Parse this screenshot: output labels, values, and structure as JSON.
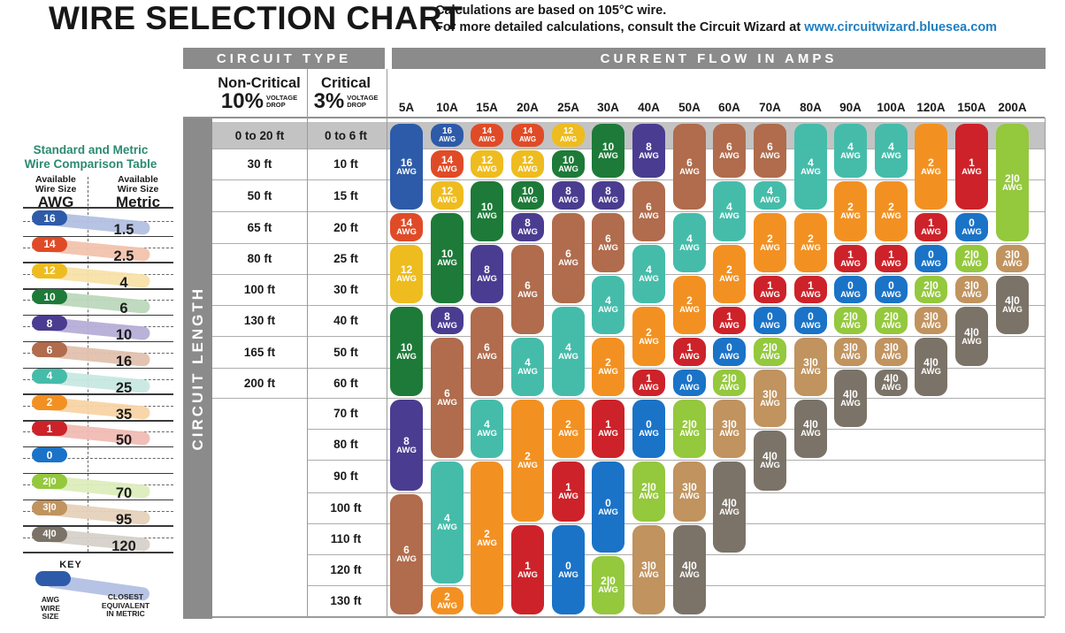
{
  "title": "WIRE SELECTION CHART",
  "subtitle": {
    "line1": "Calculations are based on 105°C wire.",
    "line2": "For more detailed calculations, consult the Circuit Wizard at",
    "link": "www.circuitwizard.bluesea.com"
  },
  "headers": {
    "circuit_type": "CIRCUIT TYPE",
    "current_flow": "CURRENT FLOW IN AMPS",
    "non_critical": "Non-Critical",
    "non_critical_pct": "10%",
    "critical": "Critical",
    "critical_pct": "3%",
    "voltage_label_1": "VOLTAGE",
    "voltage_label_2": "DROP",
    "circuit_length": "CIRCUIT LENGTH"
  },
  "chart_data": {
    "type": "table",
    "title": "Wire Selection Chart",
    "x_axis_label": "Current Flow in Amps",
    "y_axis_label": "Circuit Length",
    "amps": [
      "5A",
      "10A",
      "15A",
      "20A",
      "25A",
      "30A",
      "40A",
      "50A",
      "60A",
      "70A",
      "80A",
      "90A",
      "100A",
      "120A",
      "150A",
      "200A"
    ],
    "row_labels": [
      {
        "non_critical": "0 to 20 ft",
        "critical": "0 to 6 ft"
      },
      {
        "non_critical": "30 ft",
        "critical": "10 ft"
      },
      {
        "non_critical": "50 ft",
        "critical": "15 ft"
      },
      {
        "non_critical": "65 ft",
        "critical": "20 ft"
      },
      {
        "non_critical": "80 ft",
        "critical": "25 ft"
      },
      {
        "non_critical": "100 ft",
        "critical": "30 ft"
      },
      {
        "non_critical": "130 ft",
        "critical": "40 ft"
      },
      {
        "non_critical": "165 ft",
        "critical": "50 ft"
      },
      {
        "non_critical": "200 ft",
        "critical": "60 ft"
      },
      {
        "non_critical": "",
        "critical": "70 ft"
      },
      {
        "non_critical": "",
        "critical": "80 ft"
      },
      {
        "non_critical": "",
        "critical": "90 ft"
      },
      {
        "non_critical": "",
        "critical": "100 ft"
      },
      {
        "non_critical": "",
        "critical": "110 ft"
      },
      {
        "non_critical": "",
        "critical": "120 ft"
      },
      {
        "non_critical": "",
        "critical": "130 ft"
      }
    ],
    "unit_suffix": "AWG",
    "columns": [
      {
        "amp": "5A",
        "pills": [
          [
            "16",
            1,
            3
          ],
          [
            "14",
            4,
            4
          ],
          [
            "12",
            5,
            6
          ],
          [
            "10",
            7,
            9
          ],
          [
            "8",
            10,
            12
          ],
          [
            "6",
            13,
            16
          ]
        ]
      },
      {
        "amp": "10A",
        "pills": [
          [
            "16",
            1,
            1
          ],
          [
            "14",
            2,
            2
          ],
          [
            "12",
            3,
            3
          ],
          [
            "10",
            4,
            6
          ],
          [
            "8",
            7,
            7
          ],
          [
            "6",
            8,
            11
          ],
          [
            "4",
            12,
            15
          ],
          [
            "2",
            16,
            16
          ]
        ]
      },
      {
        "amp": "15A",
        "pills": [
          [
            "14",
            1,
            1
          ],
          [
            "12",
            2,
            2
          ],
          [
            "10",
            3,
            4
          ],
          [
            "8",
            5,
            6
          ],
          [
            "6",
            7,
            9
          ],
          [
            "4",
            10,
            11
          ],
          [
            "2",
            12,
            16
          ]
        ]
      },
      {
        "amp": "20A",
        "pills": [
          [
            "14",
            1,
            1
          ],
          [
            "12",
            2,
            2
          ],
          [
            "10",
            3,
            3
          ],
          [
            "8",
            4,
            4
          ],
          [
            "6",
            5,
            7
          ],
          [
            "4",
            8,
            9
          ],
          [
            "2",
            10,
            13
          ],
          [
            "1",
            14,
            16
          ]
        ]
      },
      {
        "amp": "25A",
        "pills": [
          [
            "12",
            1,
            1
          ],
          [
            "10",
            2,
            2
          ],
          [
            "8",
            3,
            3
          ],
          [
            "6",
            4,
            6
          ],
          [
            "4",
            7,
            9
          ],
          [
            "2",
            10,
            11
          ],
          [
            "1",
            12,
            13
          ],
          [
            "0",
            14,
            16
          ]
        ]
      },
      {
        "amp": "30A",
        "pills": [
          [
            "10",
            1,
            2
          ],
          [
            "8",
            3,
            3
          ],
          [
            "6",
            4,
            5
          ],
          [
            "4",
            6,
            7
          ],
          [
            "2",
            8,
            9
          ],
          [
            "1",
            10,
            11
          ],
          [
            "0",
            12,
            14
          ],
          [
            "2|0",
            15,
            16
          ]
        ]
      },
      {
        "amp": "40A",
        "pills": [
          [
            "8",
            1,
            2
          ],
          [
            "6",
            3,
            4
          ],
          [
            "4",
            5,
            6
          ],
          [
            "2",
            7,
            8
          ],
          [
            "1",
            9,
            9
          ],
          [
            "0",
            10,
            11
          ],
          [
            "2|0",
            12,
            13
          ],
          [
            "3|0",
            14,
            16
          ]
        ]
      },
      {
        "amp": "50A",
        "pills": [
          [
            "6",
            1,
            3
          ],
          [
            "4",
            4,
            5
          ],
          [
            "2",
            6,
            7
          ],
          [
            "1",
            8,
            8
          ],
          [
            "0",
            9,
            9
          ],
          [
            "2|0",
            10,
            11
          ],
          [
            "3|0",
            12,
            13
          ],
          [
            "4|0",
            14,
            16
          ]
        ]
      },
      {
        "amp": "60A",
        "pills": [
          [
            "6",
            1,
            2
          ],
          [
            "4",
            3,
            4
          ],
          [
            "2",
            5,
            6
          ],
          [
            "1",
            7,
            7
          ],
          [
            "0",
            8,
            8
          ],
          [
            "2|0",
            9,
            9
          ],
          [
            "3|0",
            10,
            11
          ],
          [
            "4|0",
            12,
            14
          ]
        ]
      },
      {
        "amp": "70A",
        "pills": [
          [
            "6",
            1,
            2
          ],
          [
            "4",
            3,
            3
          ],
          [
            "2",
            4,
            5
          ],
          [
            "1",
            6,
            6
          ],
          [
            "0",
            7,
            7
          ],
          [
            "2|0",
            8,
            8
          ],
          [
            "3|0",
            9,
            10
          ],
          [
            "4|0",
            11,
            12
          ]
        ]
      },
      {
        "amp": "80A",
        "pills": [
          [
            "4",
            1,
            3
          ],
          [
            "2",
            4,
            5
          ],
          [
            "1",
            6,
            6
          ],
          [
            "0",
            7,
            7
          ],
          [
            "3|0",
            8,
            9
          ],
          [
            "4|0",
            10,
            11
          ]
        ]
      },
      {
        "amp": "90A",
        "pills": [
          [
            "4",
            1,
            2
          ],
          [
            "2",
            3,
            4
          ],
          [
            "1",
            5,
            5
          ],
          [
            "0",
            6,
            6
          ],
          [
            "2|0",
            7,
            7
          ],
          [
            "3|0",
            8,
            8
          ],
          [
            "4|0",
            9,
            10
          ]
        ]
      },
      {
        "amp": "100A",
        "pills": [
          [
            "4",
            1,
            2
          ],
          [
            "2",
            3,
            4
          ],
          [
            "1",
            5,
            5
          ],
          [
            "0",
            6,
            6
          ],
          [
            "2|0",
            7,
            7
          ],
          [
            "3|0",
            8,
            8
          ],
          [
            "4|0",
            9,
            9
          ]
        ]
      },
      {
        "amp": "120A",
        "pills": [
          [
            "2",
            1,
            3
          ],
          [
            "1",
            4,
            4
          ],
          [
            "0",
            5,
            5
          ],
          [
            "2|0",
            6,
            6
          ],
          [
            "3|0",
            7,
            7
          ],
          [
            "4|0",
            8,
            9
          ]
        ]
      },
      {
        "amp": "150A",
        "pills": [
          [
            "1",
            1,
            3
          ],
          [
            "0",
            4,
            4
          ],
          [
            "2|0",
            5,
            5
          ],
          [
            "3|0",
            6,
            6
          ],
          [
            "4|0",
            7,
            8
          ]
        ]
      },
      {
        "amp": "200A",
        "pills": [
          [
            "2|0",
            1,
            4
          ],
          [
            "3|0",
            5,
            5
          ],
          [
            "4|0",
            6,
            7
          ]
        ]
      }
    ]
  },
  "wire_colors": {
    "16": "#2d5ba9",
    "14": "#e04b27",
    "12": "#eebc1f",
    "10": "#1d7a38",
    "8": "#4a3c90",
    "6": "#b06c4c",
    "4": "#45bcaa",
    "2": "#f29122",
    "1": "#cd2229",
    "0": "#1a73c7",
    "2|0": "#94c83d",
    "3|0": "#c0935f",
    "4|0": "#7b7368"
  },
  "wire_tints": {
    "16": "#b3c0e0",
    "14": "#f2c3ad",
    "12": "#f8e2a8",
    "10": "#bcd8bc",
    "8": "#b7aed8",
    "6": "#e2c1ae",
    "4": "#c8e8e1",
    "2": "#f8d4a4",
    "1": "#f0bcb4",
    "0": "",
    "2|0": "#dcedbc",
    "3|0": "#e6d2ba",
    "4|0": "#d6d1c9"
  },
  "comparison_table": {
    "title_line1": "Standard and Metric",
    "title_line2": "Wire Comparison Table",
    "col1_header_line1": "Available",
    "col1_header_line2": "Wire Size",
    "col1_unit": "AWG",
    "col2_header_line1": "Available",
    "col2_header_line2": "Wire Size",
    "col2_unit": "Metric",
    "rows": [
      {
        "awg": "16",
        "metric": "1.5"
      },
      {
        "awg": "14",
        "metric": "2.5"
      },
      {
        "awg": "12",
        "metric": "4"
      },
      {
        "awg": "10",
        "metric": "6"
      },
      {
        "awg": "8",
        "metric": "10"
      },
      {
        "awg": "6",
        "metric": "16"
      },
      {
        "awg": "4",
        "metric": "25"
      },
      {
        "awg": "2",
        "metric": "35"
      },
      {
        "awg": "1",
        "metric": "50"
      },
      {
        "awg": "0",
        "metric": ""
      },
      {
        "awg": "2|0",
        "metric": "70"
      },
      {
        "awg": "3|0",
        "metric": "95"
      },
      {
        "awg": "4|0",
        "metric": "120"
      }
    ]
  },
  "key": {
    "title": "KEY",
    "awg_line1": "AWG",
    "awg_line2": "WIRE",
    "awg_line3": "SIZE",
    "metric_line1": "CLOSEST",
    "metric_line2": "EQUIVALENT",
    "metric_line3": "IN METRIC",
    "badge_color": "#2d5ba9",
    "swoosh_color": "#b3c0e4"
  }
}
